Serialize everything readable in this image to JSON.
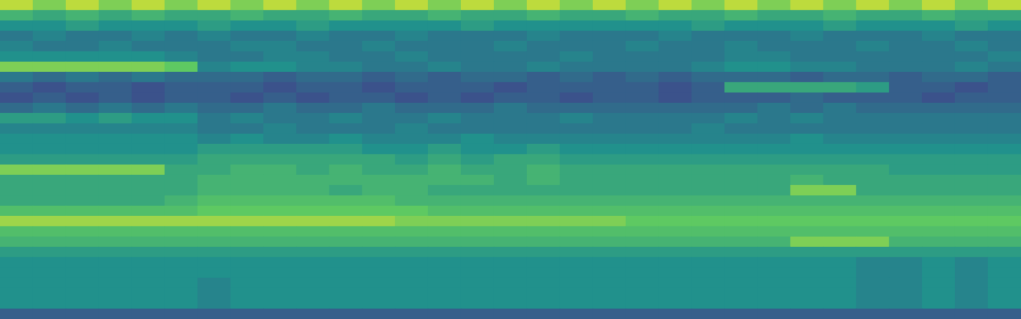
{
  "chart_data": {
    "type": "heatmap",
    "tick_labels": false,
    "color_range": [
      0,
      10
    ],
    "cells": [
      [
        9,
        8,
        9,
        8,
        9,
        8,
        9,
        8,
        9,
        8,
        9,
        8,
        9,
        8,
        9,
        8,
        9,
        8,
        9,
        8,
        9,
        8,
        9,
        8,
        9,
        8,
        9,
        8,
        9,
        8,
        9
      ],
      [
        6.5,
        6,
        6.5,
        6,
        6.5,
        6,
        6,
        6.5,
        6,
        6,
        6.5,
        6,
        6,
        6.5,
        6,
        6,
        6.5,
        6,
        6,
        6.5,
        6,
        6,
        6.5,
        6,
        6,
        6.5,
        6,
        6,
        6.5,
        6,
        6
      ],
      [
        5,
        5,
        5.5,
        5,
        5,
        5,
        5.5,
        5,
        5,
        5.5,
        5,
        5,
        5,
        5,
        5.5,
        5,
        5,
        5,
        5,
        5,
        5,
        5.5,
        5,
        5,
        5,
        5.5,
        5,
        5,
        5,
        5.5,
        5
      ],
      [
        4,
        4.5,
        4,
        4,
        4.5,
        4,
        4.5,
        4,
        4,
        4.5,
        4,
        4,
        4.5,
        4,
        4,
        4,
        4.5,
        4,
        4,
        4,
        4.5,
        4,
        4,
        4,
        4.5,
        4,
        4,
        4,
        4.5,
        4,
        4
      ],
      [
        4.5,
        4,
        4,
        4.5,
        4,
        4,
        4,
        4.5,
        4.5,
        4,
        4,
        4.5,
        4,
        4,
        4,
        4.5,
        4,
        4,
        4,
        4.5,
        4,
        4,
        4.5,
        4,
        4,
        4,
        4.5,
        4,
        4,
        4.5,
        4
      ],
      [
        5,
        5,
        5,
        5,
        5,
        4.5,
        4,
        4,
        4.5,
        4.5,
        4,
        4,
        4.5,
        4,
        4,
        4,
        4,
        4.5,
        4,
        4,
        4,
        4,
        4.5,
        4.5,
        4,
        4,
        4,
        4,
        4,
        4,
        4.5
      ],
      [
        8,
        8,
        8,
        8,
        8,
        7.5,
        4.5,
        5,
        5,
        4.5,
        4.5,
        4,
        4,
        4.5,
        4,
        4,
        4.5,
        4,
        4,
        4,
        4,
        4.5,
        5,
        5,
        4.5,
        4.5,
        4,
        4,
        4,
        4.5,
        4
      ],
      [
        4,
        3.5,
        4,
        3.5,
        4,
        3.5,
        3.5,
        3.5,
        3,
        3.5,
        3.5,
        3,
        3.5,
        3,
        3.5,
        3.5,
        3,
        3.5,
        3,
        3.5,
        3,
        3.5,
        3.5,
        3.5,
        3,
        3.5,
        3.5,
        3,
        3.5,
        3.5,
        3
      ],
      [
        3,
        2.5,
        3,
        3,
        2.5,
        3,
        3,
        3,
        2.5,
        3,
        3,
        2.5,
        3,
        3,
        3,
        2.5,
        3,
        3,
        3,
        3,
        2.5,
        3,
        6,
        6,
        6,
        6,
        5.5,
        3,
        3,
        2.5,
        3
      ],
      [
        2.5,
        3,
        2.5,
        3,
        2.5,
        3,
        3,
        2.5,
        3,
        2.5,
        3,
        3,
        2.5,
        3,
        2.5,
        3,
        3,
        2.5,
        3,
        3,
        2.5,
        3,
        3,
        3,
        3.5,
        3,
        3,
        3,
        2.5,
        3,
        3
      ],
      [
        3.5,
        4,
        3.5,
        4,
        3.5,
        4,
        3.5,
        3.5,
        4,
        3.5,
        3.5,
        4,
        3.5,
        3.5,
        3.5,
        4,
        3.5,
        3.5,
        3.5,
        3.5,
        3.5,
        3.5,
        3.5,
        4,
        3.5,
        4,
        3.5,
        3.5,
        3.5,
        3.5,
        3.5
      ],
      [
        5.5,
        5.5,
        5,
        5.5,
        5,
        5,
        4,
        4.5,
        4,
        4,
        4.5,
        4,
        4,
        4.5,
        4,
        4,
        4,
        4.5,
        4,
        4,
        4,
        4,
        4.5,
        4,
        4.5,
        4,
        4,
        4,
        4,
        4,
        4
      ],
      [
        4.5,
        4.5,
        4.5,
        4.5,
        4.5,
        4.5,
        4,
        4,
        4.5,
        4,
        4,
        4,
        4.5,
        4,
        4,
        4,
        4,
        4,
        4,
        4,
        4,
        4.5,
        4,
        4,
        4,
        4,
        4,
        4,
        4,
        4,
        4
      ],
      [
        5,
        5,
        5,
        5,
        5,
        5,
        4.5,
        5,
        4.5,
        4.5,
        5,
        4.5,
        4.5,
        4.5,
        5,
        4.5,
        4.5,
        4.5,
        4.5,
        4.5,
        4.5,
        4.5,
        4.5,
        4.5,
        5,
        4.5,
        4.5,
        4.5,
        4.5,
        4.5,
        4.5
      ],
      [
        5,
        5,
        5,
        5,
        5,
        5,
        5.5,
        5.5,
        5.5,
        5.5,
        5.5,
        5,
        5,
        5.5,
        5,
        5,
        5.5,
        5,
        5,
        5,
        5,
        5,
        5,
        5,
        5,
        5,
        5,
        5,
        5,
        5,
        5
      ],
      [
        5.5,
        5.5,
        5.5,
        5.5,
        5.5,
        5.5,
        6,
        6,
        6,
        6,
        6,
        6,
        5.5,
        6,
        5.5,
        6,
        6,
        5.5,
        5.5,
        5.5,
        5.5,
        5.5,
        5.5,
        5.5,
        5.5,
        5.5,
        5.5,
        5.5,
        5.5,
        5.5,
        5.5
      ],
      [
        8,
        8,
        8,
        8,
        8,
        6,
        6,
        6.5,
        6.5,
        6,
        6.5,
        6,
        6,
        6.5,
        6,
        6,
        6.5,
        6,
        6,
        6,
        6,
        6,
        6,
        6,
        6,
        6,
        6,
        5.5,
        5.5,
        5.5,
        5.5
      ],
      [
        6,
        6,
        6,
        6,
        6,
        6,
        6.5,
        6.5,
        6.5,
        6.5,
        6.5,
        6.5,
        6.5,
        6.5,
        6.5,
        6,
        6.5,
        6,
        6,
        6,
        6,
        6,
        6,
        6,
        6.5,
        6,
        6,
        6,
        6,
        6,
        6
      ],
      [
        6,
        6,
        6,
        6,
        6,
        6,
        6.5,
        6.5,
        6.5,
        6.5,
        6,
        6.5,
        6.5,
        6,
        6,
        6,
        6,
        6,
        6,
        6,
        6,
        6,
        6,
        6,
        8,
        8,
        6,
        6,
        6,
        6,
        6
      ],
      [
        6,
        6,
        6,
        6,
        6,
        6.5,
        7,
        7,
        7,
        7,
        7,
        7,
        6.5,
        6.5,
        6.5,
        6.5,
        6.5,
        6.5,
        6.5,
        6.5,
        6.5,
        6.5,
        6.5,
        6.5,
        6.5,
        6.5,
        6.5,
        6.5,
        6.5,
        6.5,
        6.5
      ],
      [
        7,
        7,
        7,
        7,
        7,
        7,
        7.5,
        7.5,
        7.5,
        7.5,
        7.5,
        7.5,
        7.5,
        7,
        7,
        7,
        7,
        7,
        7,
        7,
        7,
        7,
        7,
        7,
        7,
        7,
        7,
        7,
        7,
        7,
        7
      ],
      [
        8.5,
        8.5,
        8.5,
        8.5,
        8.5,
        8.5,
        8.5,
        8.5,
        8.5,
        8.5,
        8.5,
        8.5,
        8,
        8,
        8,
        8,
        8,
        8,
        8,
        7.5,
        7.5,
        7.5,
        7.5,
        7.5,
        7.5,
        7.5,
        7.5,
        7.5,
        7.5,
        7.5,
        7.5
      ],
      [
        7,
        7,
        7,
        7,
        7,
        7,
        7,
        7,
        7,
        7,
        7,
        7,
        7,
        7,
        7,
        7,
        7,
        7,
        7,
        7,
        7,
        7,
        7,
        7,
        7,
        7,
        7,
        7,
        7,
        7,
        7
      ],
      [
        6.5,
        6.5,
        6.5,
        6.5,
        6.5,
        6.5,
        6.5,
        6.5,
        6.5,
        6.5,
        6.5,
        6.5,
        6.5,
        6.5,
        6.5,
        6.5,
        6.5,
        6.5,
        6.5,
        6.5,
        6.5,
        6.5,
        6.5,
        6.5,
        8,
        8,
        8,
        6.5,
        6.5,
        6.5,
        6.5
      ],
      [
        5.5,
        5.5,
        5.5,
        5.5,
        5.5,
        5.5,
        5.5,
        5.5,
        5.5,
        5.5,
        5.5,
        5.5,
        5.5,
        5.5,
        5.5,
        5.5,
        5.5,
        5.5,
        5.5,
        5.5,
        5.5,
        5.5,
        5.5,
        5.5,
        5.5,
        5.5,
        5.5,
        5.5,
        5.5,
        5.5,
        5.5
      ],
      [
        5,
        5,
        5,
        5,
        5,
        5,
        5,
        5,
        5,
        5,
        5,
        5,
        5,
        5,
        5,
        5,
        5,
        5,
        5,
        5,
        5,
        5,
        5,
        5,
        5,
        5,
        4.5,
        4.5,
        5,
        4.5,
        5
      ],
      [
        5,
        5,
        5,
        5,
        5,
        5,
        5,
        5,
        5,
        5,
        5,
        5,
        5,
        5,
        5,
        5,
        5,
        5,
        5,
        5,
        5,
        5,
        5,
        5,
        5,
        5,
        4.5,
        4.5,
        5,
        4.5,
        5
      ],
      [
        5,
        5,
        5,
        5,
        5,
        5,
        4.5,
        5,
        5,
        5,
        5,
        5,
        5,
        5,
        5,
        5,
        5,
        5,
        5,
        5,
        5,
        5,
        5,
        5,
        5,
        5,
        4.5,
        4.5,
        5,
        4.5,
        5
      ],
      [
        5,
        5,
        5,
        5,
        5,
        5,
        4.5,
        5,
        5,
        5,
        5,
        5,
        5,
        5,
        5,
        5,
        5,
        5,
        5,
        5,
        5,
        5,
        5,
        5,
        5,
        5,
        4.5,
        4.5,
        5,
        4.5,
        5
      ],
      [
        5,
        5,
        5,
        5,
        5,
        5,
        4.5,
        5,
        5,
        5,
        5,
        5,
        5,
        5,
        5,
        5,
        5,
        5,
        5,
        5,
        5,
        5,
        5,
        5,
        5,
        5,
        4.5,
        4.5,
        5,
        4.5,
        5
      ],
      [
        3,
        3,
        3,
        3,
        3,
        3,
        3,
        3,
        3,
        3,
        3,
        3,
        3,
        3,
        3,
        3,
        3,
        3,
        3,
        3,
        3,
        3,
        3,
        3,
        3,
        3,
        3,
        3,
        3,
        3,
        3
      ]
    ]
  }
}
